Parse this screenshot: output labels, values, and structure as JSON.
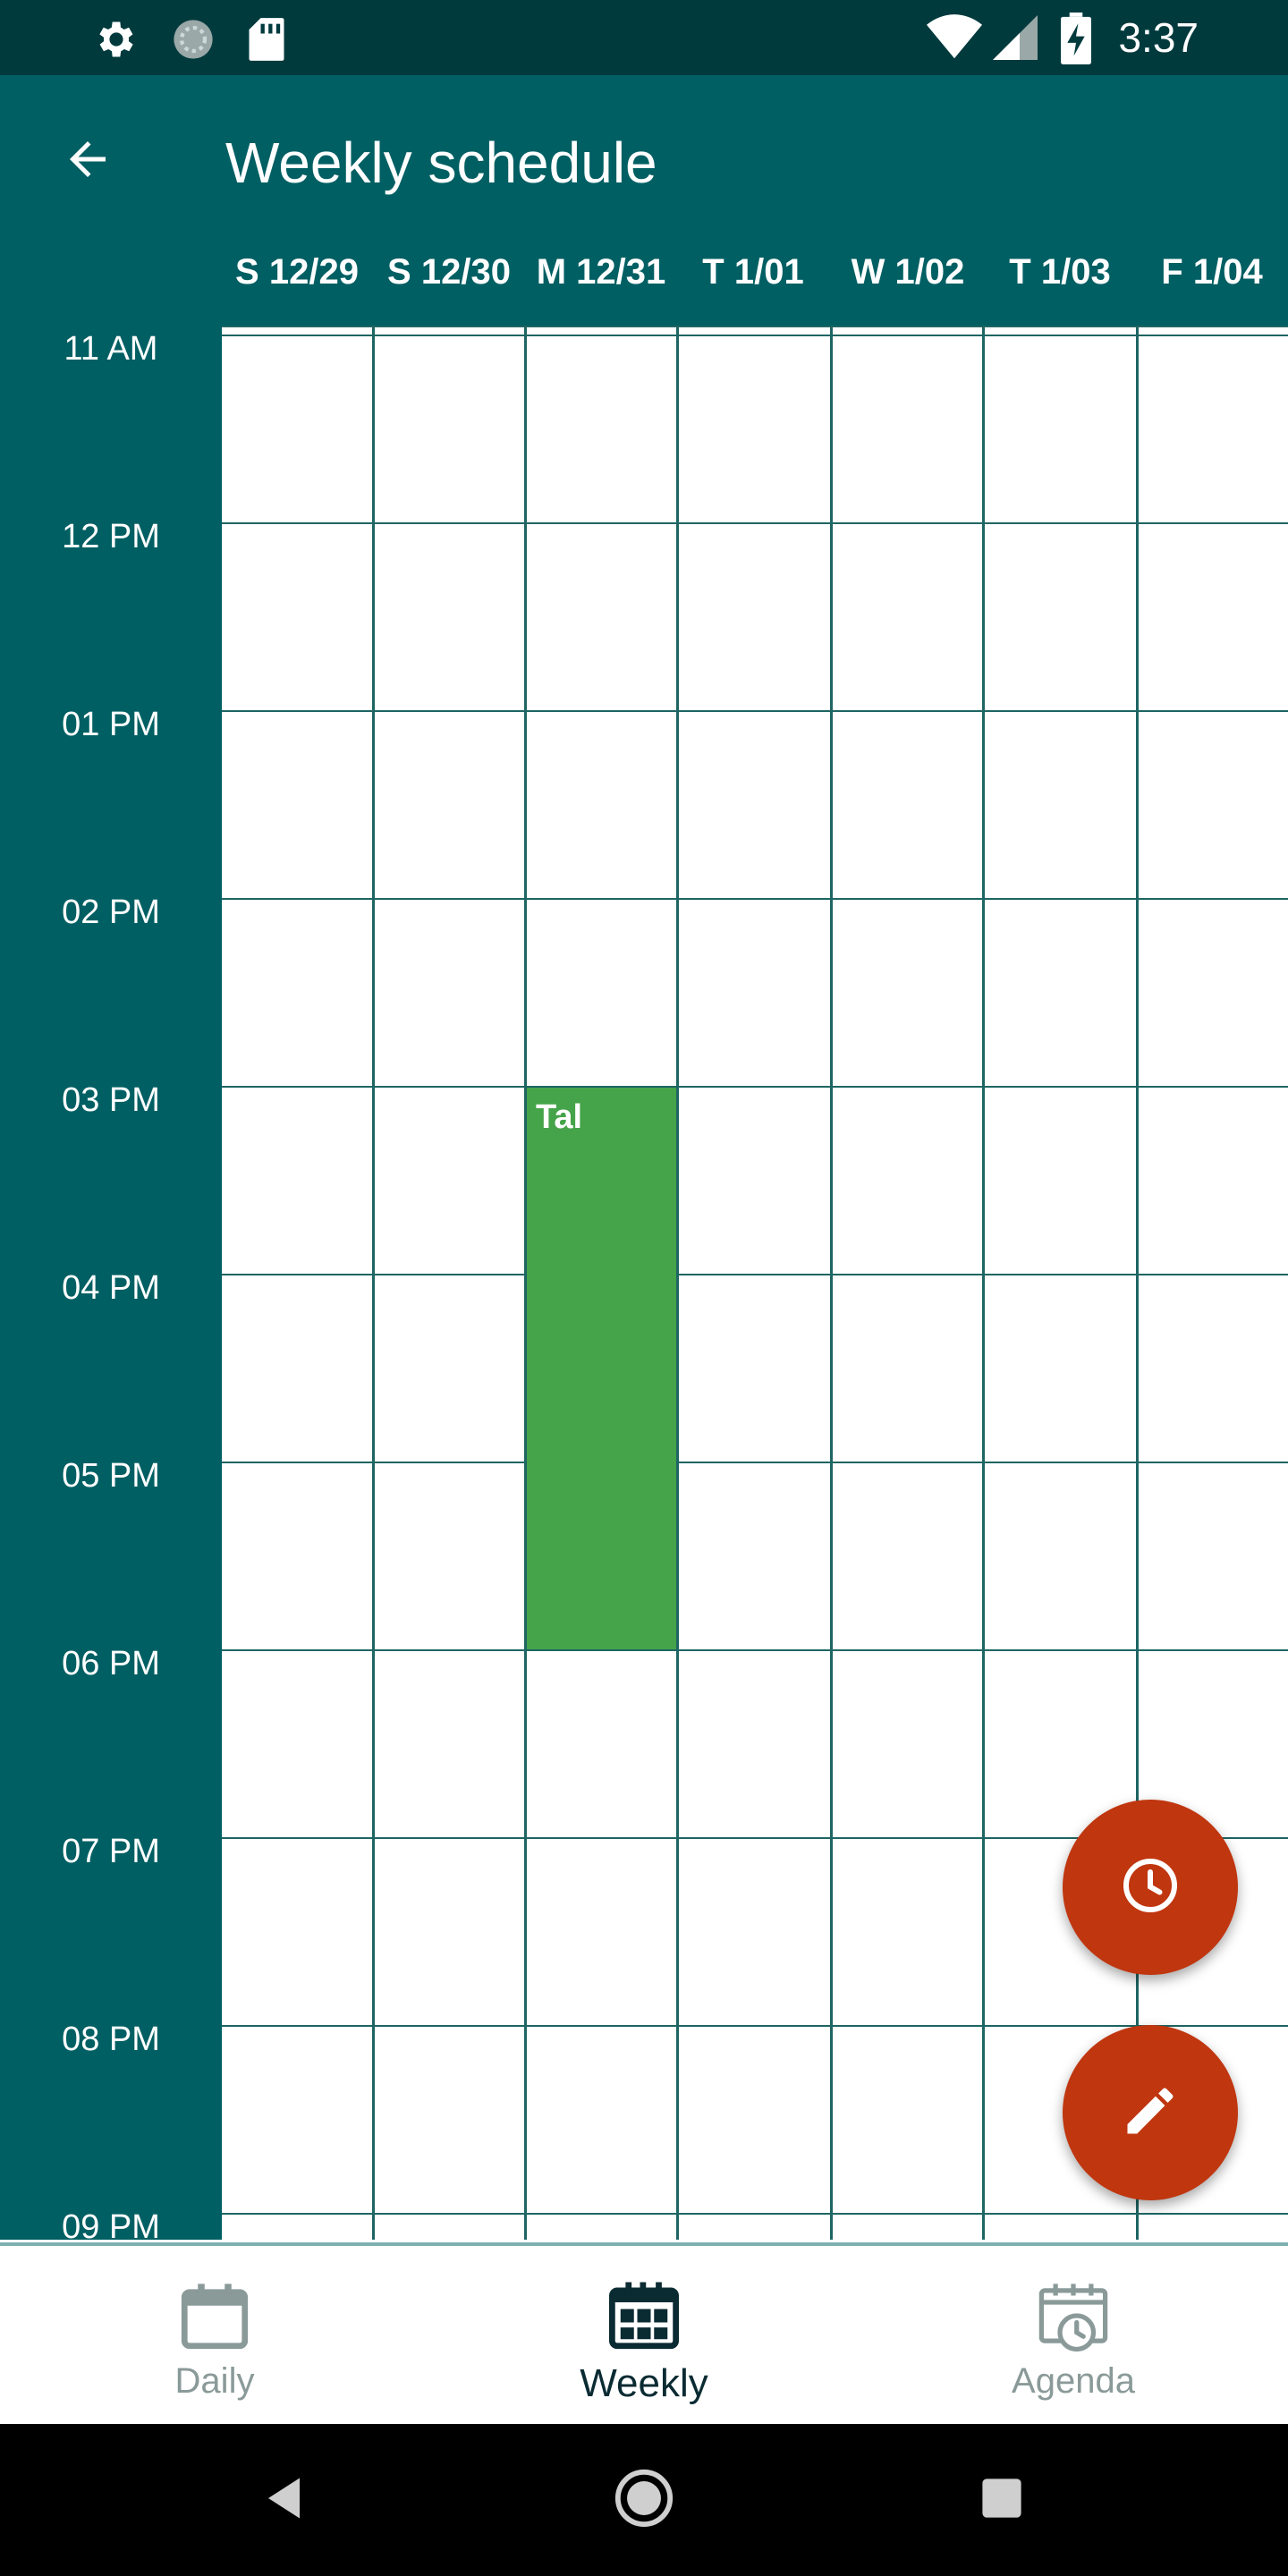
{
  "status_bar": {
    "time": "3:37",
    "icons": [
      "settings-icon",
      "sync-icon",
      "sd-card-icon",
      "wifi-icon",
      "signal-icon",
      "battery-charging-icon"
    ]
  },
  "app_bar": {
    "title": "Weekly schedule",
    "back_icon": "arrow-back-icon"
  },
  "days": [
    {
      "label": "S 12/29"
    },
    {
      "label": "S 12/30"
    },
    {
      "label": "M 12/31"
    },
    {
      "label": "T 1/01"
    },
    {
      "label": "W 1/02"
    },
    {
      "label": "T 1/03"
    },
    {
      "label": "F 1/04"
    }
  ],
  "hours": [
    "11 AM",
    "12 PM",
    "01 PM",
    "02 PM",
    "03 PM",
    "04 PM",
    "05 PM",
    "06 PM",
    "07 PM",
    "08 PM",
    "09 PM"
  ],
  "events": [
    {
      "title": "Tal",
      "day_index": 2,
      "start_hour_index": 4,
      "end_hour_index": 7,
      "color": "#45a349"
    }
  ],
  "fabs": {
    "clock_icon": "clock-icon",
    "edit_icon": "pencil-icon",
    "color": "#c0360f"
  },
  "bottom_nav": {
    "items": [
      {
        "label": "Daily",
        "icon": "calendar-icon",
        "active": false
      },
      {
        "label": "Weekly",
        "icon": "calendar-grid-icon",
        "active": true
      },
      {
        "label": "Agenda",
        "icon": "calendar-clock-icon",
        "active": false
      }
    ]
  },
  "colors": {
    "primary_dark": "#003a3d",
    "primary": "#005f63",
    "accent": "#c0360f",
    "event": "#45a349"
  }
}
